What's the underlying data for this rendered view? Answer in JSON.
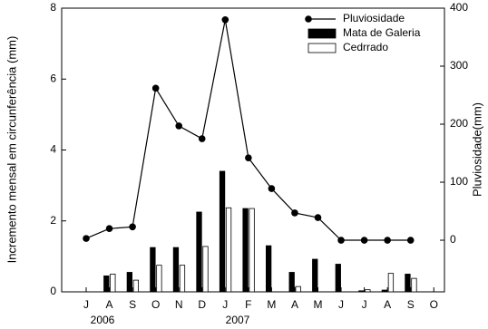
{
  "chart_data": {
    "type": "combo",
    "y_label": "Incremento mensal em circunferência (mm)",
    "y2_label": "Pluviosidade(mm)",
    "categories": [
      "J",
      "A",
      "S",
      "O",
      "N",
      "D",
      "J",
      "F",
      "M",
      "A",
      "M",
      "J",
      "J",
      "A",
      "S",
      "O"
    ],
    "year_labels": [
      "2006",
      "2007"
    ],
    "ylim": [
      0,
      8
    ],
    "yticks": [
      0,
      2,
      4,
      6,
      8
    ],
    "y2lim": [
      -89,
      400
    ],
    "y2ticks": [
      0,
      100,
      200,
      300,
      400
    ],
    "legend": "top-right",
    "series": [
      {
        "name": "Pluviosidade",
        "type": "line",
        "axis": "y2",
        "color": "#000000",
        "values": [
          3,
          20,
          23,
          262,
          197,
          175,
          380,
          142,
          89,
          47,
          39,
          0,
          0,
          0,
          0,
          null
        ]
      },
      {
        "name": "Mata de Galeria",
        "type": "bar",
        "color": "#000000",
        "values": [
          null,
          0.45,
          0.55,
          1.25,
          1.25,
          2.25,
          3.4,
          2.35,
          1.3,
          0.55,
          0.92,
          0.78,
          0.03,
          0.05,
          0.5,
          null
        ]
      },
      {
        "name": "Cedrrado",
        "type": "bar",
        "color": "#ffffff",
        "values": [
          null,
          0.5,
          0.33,
          0.75,
          0.75,
          1.28,
          2.37,
          2.35,
          null,
          0.15,
          null,
          null,
          0.06,
          0.52,
          0.38,
          null
        ]
      }
    ]
  }
}
